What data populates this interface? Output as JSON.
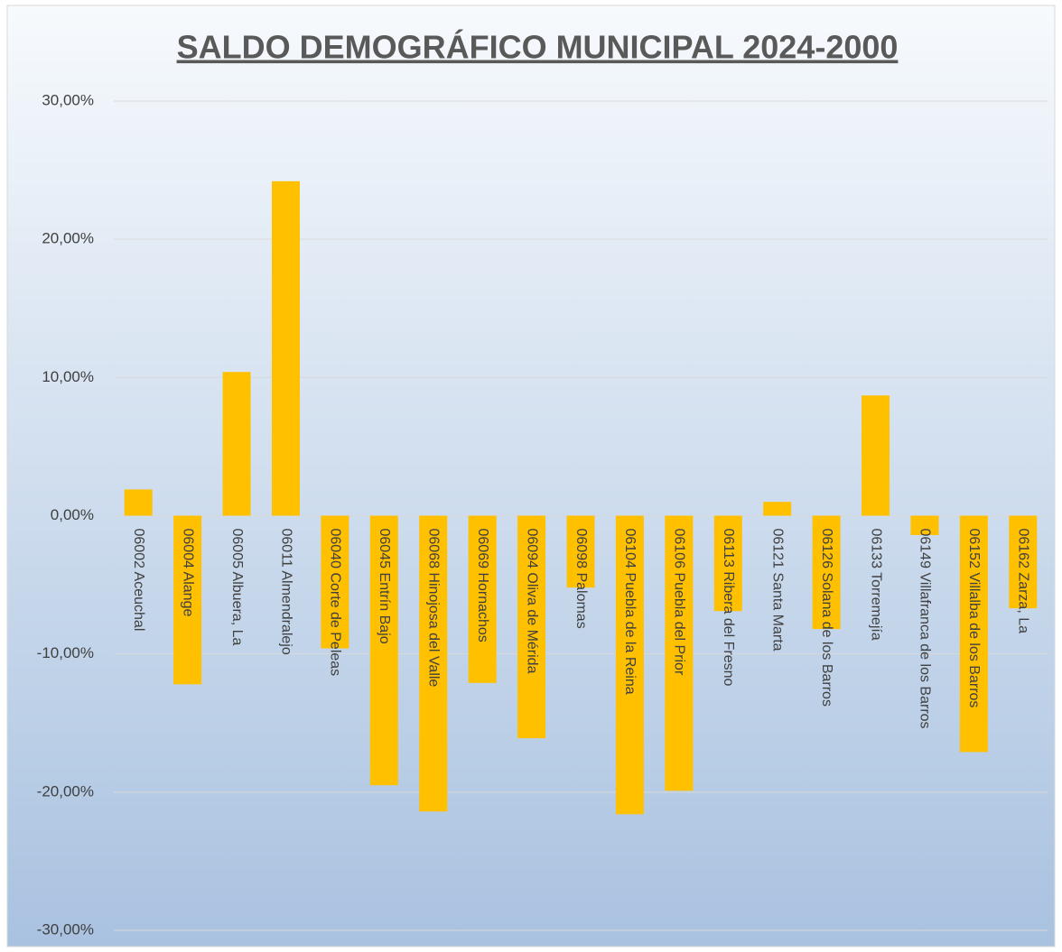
{
  "chart_data": {
    "type": "bar",
    "title": "SALDO DEMOGRÁFICO MUNICIPAL 2024-2000",
    "categories": [
      "06002 Aceuchal",
      "06004 Alange",
      "06005 Albuera, La",
      "06011 Almendralejo",
      "06040 Corte de Peleas",
      "06045 Entrín Bajo",
      "06068 Hinojosa del Valle",
      "06069 Hornachos",
      "06094 Oliva de Mérida",
      "06098 Palomas",
      "06104 Puebla de la Reina",
      "06106 Puebla del Prior",
      "06113 Ribera del Fresno",
      "06121 Santa Marta",
      "06126 Solana de los Barros",
      "06133 Torremejía",
      "06149 Villafranca de los Barros",
      "06152 Villalba de los Barros",
      "06162 Zarza, La"
    ],
    "values": [
      1.9,
      -12.2,
      10.4,
      24.2,
      -9.6,
      -19.5,
      -21.4,
      -12.1,
      -16.1,
      -5.2,
      -21.6,
      -19.9,
      -6.9,
      1.0,
      -8.2,
      8.7,
      -1.4,
      -17.1,
      -6.7
    ],
    "color": "#ffc000",
    "ylim": [
      -30,
      30
    ],
    "yticks": [
      {
        "value": -30,
        "label": "-30,00%"
      },
      {
        "value": -20,
        "label": "-20,00%"
      },
      {
        "value": -10,
        "label": "-10,00%"
      },
      {
        "value": 0,
        "label": "0,00%"
      },
      {
        "value": 10,
        "label": "10,00%"
      },
      {
        "value": 20,
        "label": "20,00%"
      },
      {
        "value": 30,
        "label": "30,00%"
      }
    ],
    "grid": true
  }
}
